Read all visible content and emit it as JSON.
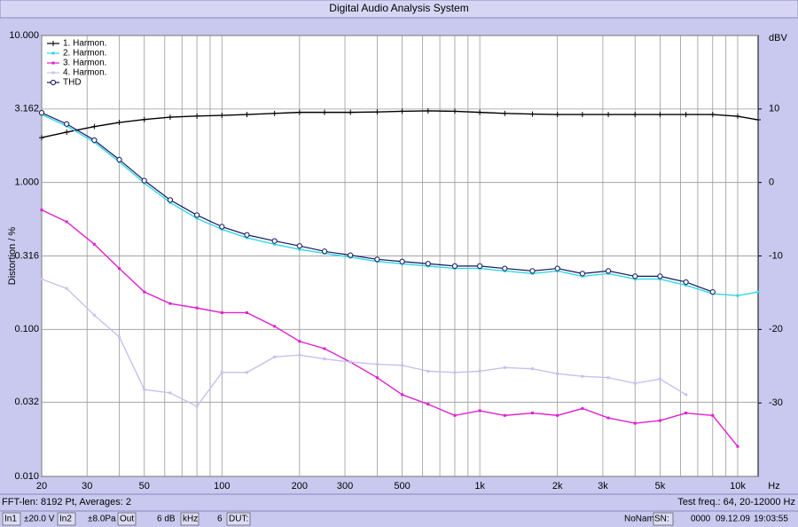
{
  "window": {
    "title": "Digital Audio Analysis System"
  },
  "chart_data": {
    "type": "line",
    "xlabel": "Hz",
    "ylabel": "Distortion / %",
    "y2label": "dBV",
    "xscale": "log",
    "yscale": "log",
    "grid": true,
    "legend": "upper left",
    "x": [
      20,
      25,
      32,
      40,
      50,
      63,
      80,
      100,
      125,
      160,
      200,
      250,
      315,
      400,
      500,
      630,
      800,
      1000,
      1250,
      1600,
      2000,
      2500,
      3150,
      4000,
      5000,
      6300,
      8000,
      10000,
      12000
    ],
    "series": [
      {
        "name": "1. Harmon.",
        "color": "#000000",
        "marker": "plus",
        "values": [
          2.02,
          2.2,
          2.4,
          2.56,
          2.68,
          2.78,
          2.83,
          2.86,
          2.9,
          2.95,
          3.0,
          3.0,
          3.0,
          3.02,
          3.05,
          3.07,
          3.05,
          3.0,
          2.95,
          2.92,
          2.9,
          2.9,
          2.9,
          2.9,
          2.9,
          2.9,
          2.9,
          2.82,
          2.67
        ]
      },
      {
        "name": "2. Harmon.",
        "color": "#33d6e6",
        "marker": "dot",
        "values": [
          2.9,
          2.42,
          1.88,
          1.38,
          0.99,
          0.73,
          0.57,
          0.48,
          0.42,
          0.38,
          0.35,
          0.33,
          0.31,
          0.29,
          0.28,
          0.27,
          0.26,
          0.26,
          0.25,
          0.24,
          0.25,
          0.23,
          0.24,
          0.22,
          0.22,
          0.2,
          0.175,
          0.17,
          0.18
        ]
      },
      {
        "name": "3. Harmon.",
        "color": "#e020d0",
        "marker": "dot",
        "values": [
          0.65,
          0.54,
          0.38,
          0.26,
          0.18,
          0.15,
          0.14,
          0.13,
          0.13,
          0.105,
          0.083,
          0.074,
          0.06,
          0.047,
          0.036,
          0.031,
          0.026,
          0.028,
          0.026,
          0.027,
          0.026,
          0.029,
          0.025,
          0.023,
          0.024,
          0.027,
          0.026,
          0.016,
          null
        ]
      },
      {
        "name": "4. Harmon.",
        "color": "#c8c0f0",
        "marker": "dot",
        "values": [
          0.22,
          0.19,
          0.125,
          0.089,
          0.039,
          0.037,
          0.03,
          0.051,
          0.051,
          0.065,
          0.067,
          0.063,
          0.06,
          0.058,
          0.057,
          0.052,
          0.051,
          0.052,
          0.055,
          0.054,
          0.05,
          0.048,
          0.047,
          0.043,
          0.046,
          0.036,
          null,
          null,
          null
        ]
      },
      {
        "name": "THD",
        "color": "#101860",
        "marker": "circle",
        "values": [
          2.98,
          2.5,
          1.94,
          1.43,
          1.03,
          0.76,
          0.6,
          0.5,
          0.44,
          0.4,
          0.37,
          0.34,
          0.32,
          0.3,
          0.29,
          0.28,
          0.27,
          0.27,
          0.26,
          0.25,
          0.26,
          0.24,
          0.25,
          0.23,
          0.23,
          0.21,
          0.18,
          null,
          null
        ]
      }
    ],
    "xlim": [
      20,
      12000
    ],
    "xticks": [
      20,
      30,
      50,
      100,
      200,
      300,
      500,
      {
        "value": 1000,
        "label": "1k"
      },
      {
        "value": 2000,
        "label": "2k"
      },
      {
        "value": 3000,
        "label": "3k"
      },
      {
        "value": 5000,
        "label": "5k"
      },
      {
        "value": 10000,
        "label": "10k"
      }
    ],
    "xminorticks": [
      40,
      60,
      70,
      80,
      90,
      400,
      600,
      700,
      800,
      900,
      4000,
      6000,
      7000,
      8000,
      9000
    ],
    "ylim": [
      0.01,
      10
    ],
    "yticks": [
      {
        "value": 10,
        "label": "10.000"
      },
      {
        "value": 3.162,
        "label": "3.162"
      },
      {
        "value": 1,
        "label": "1.000"
      },
      {
        "value": 0.316,
        "label": "0.316"
      },
      {
        "value": 0.1,
        "label": "0.100"
      },
      {
        "value": 0.032,
        "label": "0.032"
      },
      {
        "value": 0.01,
        "label": "0.010"
      }
    ],
    "y2lim": [
      -40,
      20
    ],
    "y2ticks": [
      10,
      0,
      -10,
      -20,
      -30
    ]
  },
  "status": {
    "left": "FFT-len: 8192 Pt, Averages: 2",
    "right": "Test freq.: 64, 20-12000 Hz"
  },
  "toolbar": {
    "items": [
      "In1",
      "±20.0 V",
      "In2",
      "±8.0Pa",
      "Out",
      "6 dB",
      "kHz",
      "6",
      "DUT:"
    ],
    "right": [
      "NoName",
      "SN:",
      "0000",
      "09.12.09",
      "19:03:55"
    ]
  }
}
